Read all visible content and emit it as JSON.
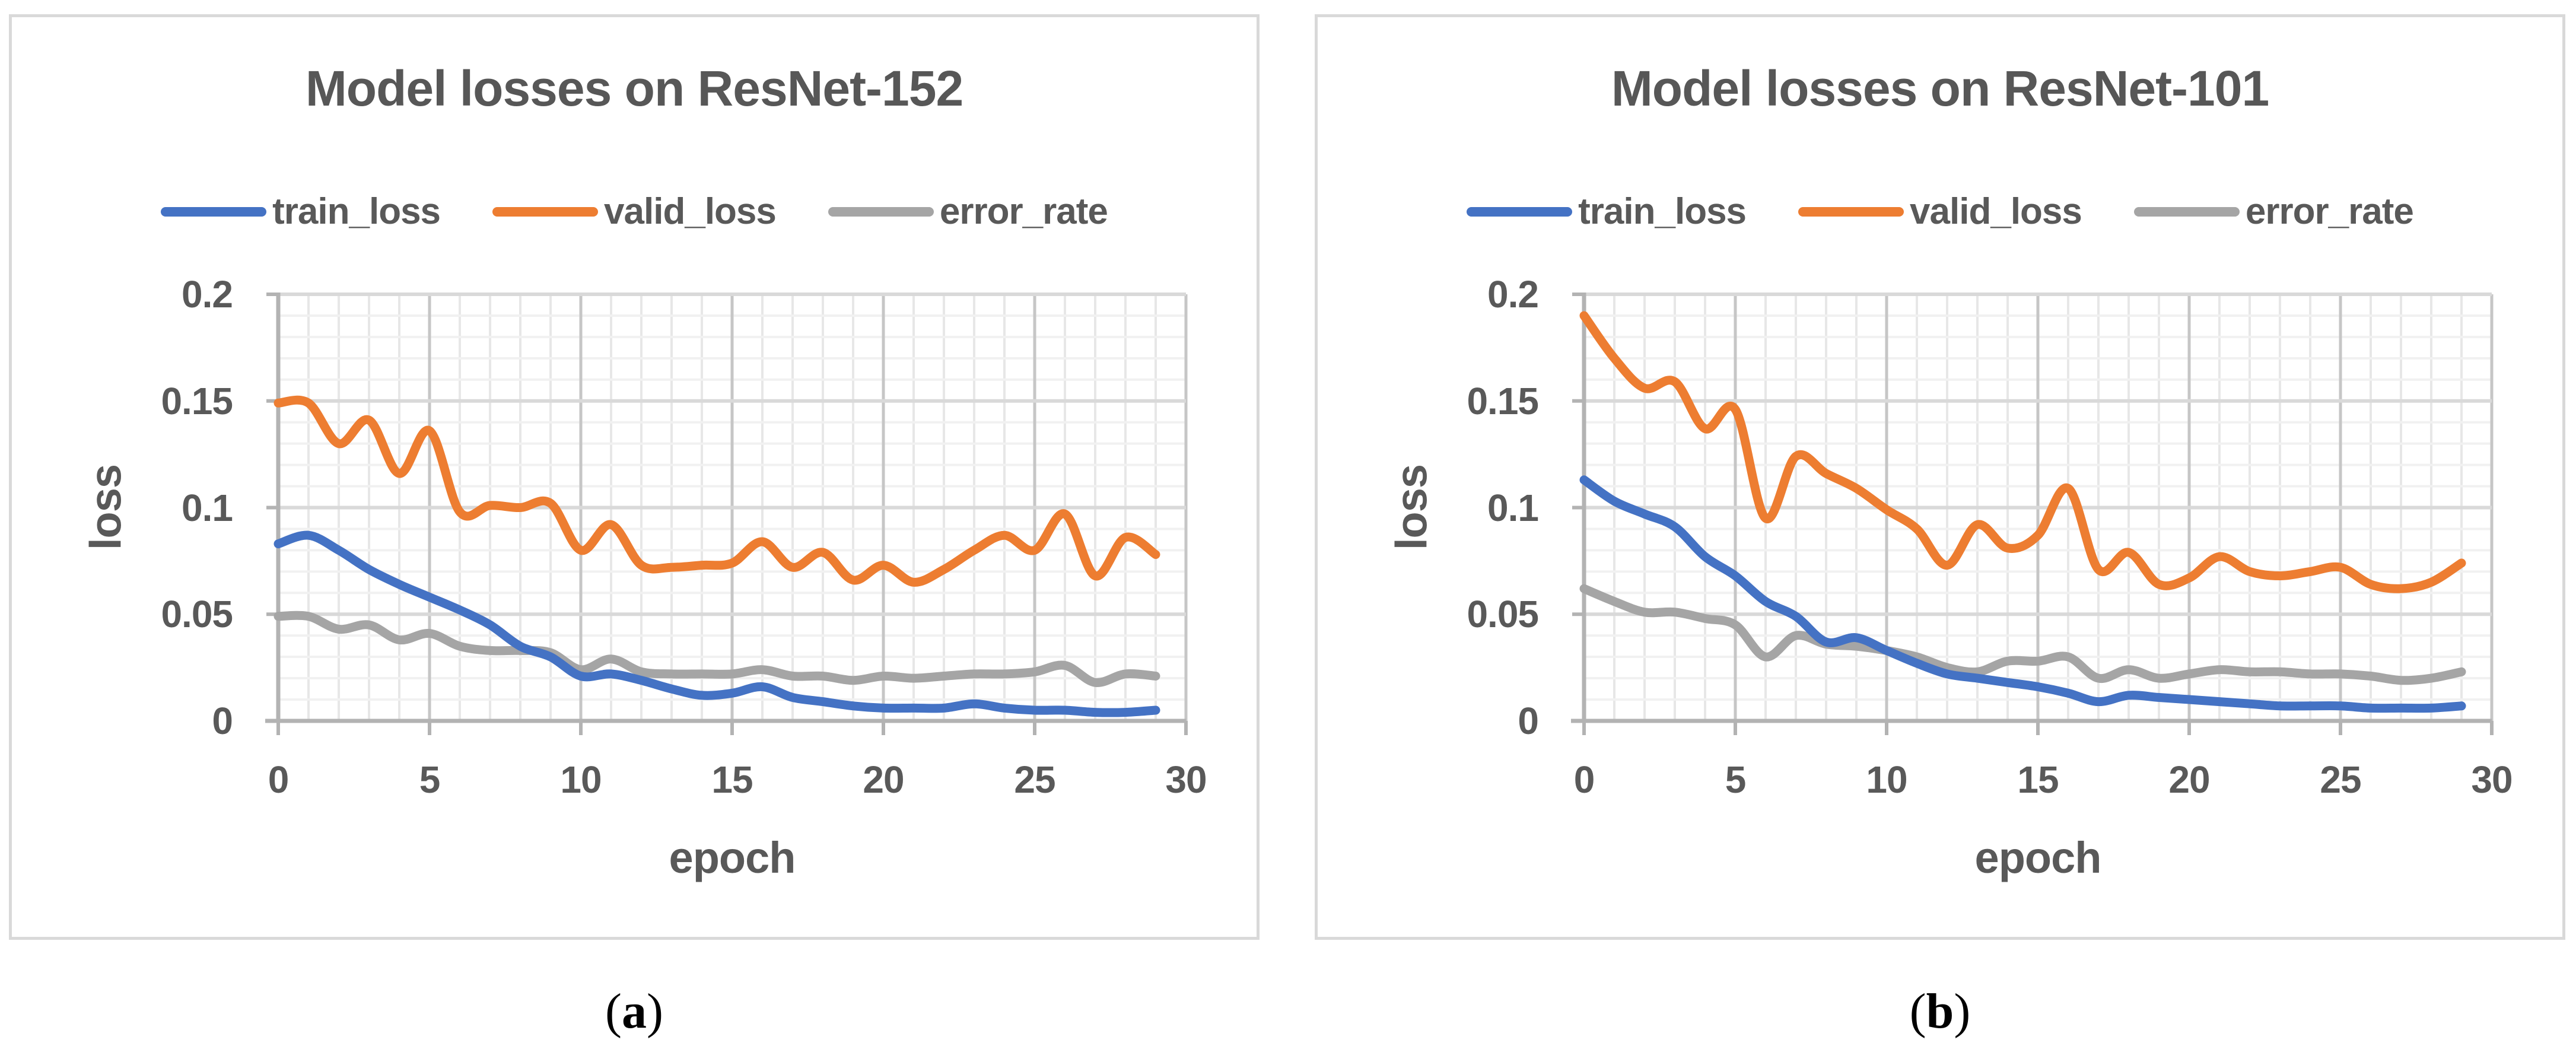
{
  "figure": {
    "captions": [
      {
        "open": "(",
        "letter": "a",
        "close": ")"
      },
      {
        "open": "(",
        "letter": "b",
        "close": ")"
      }
    ]
  },
  "theme": {
    "text_color": "#595959",
    "axis_color": "#B3B3B3",
    "major_grid_h": "#D9D9D9",
    "major_grid_v": "#C6C6C6",
    "minor_grid_h": "#F1F1F1",
    "minor_grid_v": "#E7E7E7",
    "panel_border": "#D9D9D9",
    "series_colors": {
      "train_loss": "#4472C4",
      "valid_loss": "#ED7D31",
      "error_rate": "#A5A5A5"
    }
  },
  "chart_data": [
    {
      "type": "line",
      "title": "Model losses on ResNet-152",
      "xlabel": "epoch",
      "ylabel": "loss",
      "x_ticks": [
        "0",
        "5",
        "10",
        "15",
        "20",
        "25",
        "30"
      ],
      "y_ticks": [
        "0.2",
        "0.15",
        "0.1",
        "0.05",
        "0"
      ],
      "xlim": [
        0,
        30
      ],
      "ylim": [
        0,
        0.2
      ],
      "x_major_unit": 5,
      "x_minor_unit": 1,
      "y_major_unit": 0.05,
      "y_minor_unit": 0.01,
      "grid": true,
      "legend_position": "top",
      "smooth_lines": true,
      "x": [
        0,
        1,
        2,
        3,
        4,
        5,
        6,
        7,
        8,
        9,
        10,
        11,
        12,
        13,
        14,
        15,
        16,
        17,
        18,
        19,
        20,
        21,
        22,
        23,
        24,
        25,
        26,
        27,
        28,
        29
      ],
      "series": [
        {
          "name": "train_loss",
          "color": "#4472C4",
          "values": [
            0.083,
            0.087,
            0.08,
            0.071,
            0.064,
            0.058,
            0.052,
            0.045,
            0.035,
            0.03,
            0.021,
            0.022,
            0.019,
            0.015,
            0.012,
            0.013,
            0.016,
            0.011,
            0.009,
            0.007,
            0.006,
            0.006,
            0.006,
            0.008,
            0.006,
            0.005,
            0.005,
            0.004,
            0.004,
            0.005
          ]
        },
        {
          "name": "valid_loss",
          "color": "#ED7D31",
          "values": [
            0.149,
            0.149,
            0.13,
            0.141,
            0.116,
            0.136,
            0.098,
            0.101,
            0.1,
            0.102,
            0.08,
            0.092,
            0.073,
            0.072,
            0.073,
            0.074,
            0.084,
            0.072,
            0.079,
            0.066,
            0.073,
            0.065,
            0.071,
            0.08,
            0.087,
            0.08,
            0.097,
            0.068,
            0.086,
            0.078
          ]
        },
        {
          "name": "error_rate",
          "color": "#A5A5A5",
          "values": [
            0.049,
            0.049,
            0.043,
            0.045,
            0.038,
            0.041,
            0.035,
            0.033,
            0.033,
            0.032,
            0.024,
            0.029,
            0.023,
            0.022,
            0.022,
            0.022,
            0.024,
            0.021,
            0.021,
            0.019,
            0.021,
            0.02,
            0.021,
            0.022,
            0.022,
            0.023,
            0.026,
            0.018,
            0.022,
            0.021
          ]
        }
      ]
    },
    {
      "type": "line",
      "title": "Model losses on ResNet-101",
      "xlabel": "epoch",
      "ylabel": "loss",
      "x_ticks": [
        "0",
        "5",
        "10",
        "15",
        "20",
        "25",
        "30"
      ],
      "y_ticks": [
        "0.2",
        "0.15",
        "0.1",
        "0.05",
        "0"
      ],
      "xlim": [
        0,
        30
      ],
      "ylim": [
        0,
        0.2
      ],
      "x_major_unit": 5,
      "x_minor_unit": 1,
      "y_major_unit": 0.05,
      "y_minor_unit": 0.01,
      "grid": true,
      "legend_position": "top",
      "smooth_lines": true,
      "x": [
        0,
        1,
        2,
        3,
        4,
        5,
        6,
        7,
        8,
        9,
        10,
        11,
        12,
        13,
        14,
        15,
        16,
        17,
        18,
        19,
        20,
        21,
        22,
        23,
        24,
        25,
        26,
        27,
        28,
        29
      ],
      "series": [
        {
          "name": "train_loss",
          "color": "#4472C4",
          "values": [
            0.113,
            0.103,
            0.097,
            0.091,
            0.077,
            0.068,
            0.056,
            0.049,
            0.037,
            0.039,
            0.033,
            0.027,
            0.022,
            0.02,
            0.018,
            0.016,
            0.013,
            0.009,
            0.012,
            0.011,
            0.01,
            0.009,
            0.008,
            0.007,
            0.007,
            0.007,
            0.006,
            0.006,
            0.006,
            0.007
          ]
        },
        {
          "name": "valid_loss",
          "color": "#ED7D31",
          "values": [
            0.19,
            0.17,
            0.156,
            0.159,
            0.137,
            0.146,
            0.095,
            0.124,
            0.116,
            0.109,
            0.099,
            0.09,
            0.073,
            0.092,
            0.081,
            0.087,
            0.109,
            0.071,
            0.079,
            0.064,
            0.067,
            0.077,
            0.07,
            0.068,
            0.07,
            0.072,
            0.064,
            0.062,
            0.065,
            0.074
          ]
        },
        {
          "name": "error_rate",
          "color": "#A5A5A5",
          "values": [
            0.062,
            0.056,
            0.051,
            0.051,
            0.048,
            0.045,
            0.03,
            0.04,
            0.036,
            0.035,
            0.033,
            0.03,
            0.025,
            0.023,
            0.028,
            0.028,
            0.03,
            0.02,
            0.024,
            0.02,
            0.022,
            0.024,
            0.023,
            0.023,
            0.022,
            0.022,
            0.021,
            0.019,
            0.02,
            0.023
          ]
        }
      ]
    }
  ]
}
